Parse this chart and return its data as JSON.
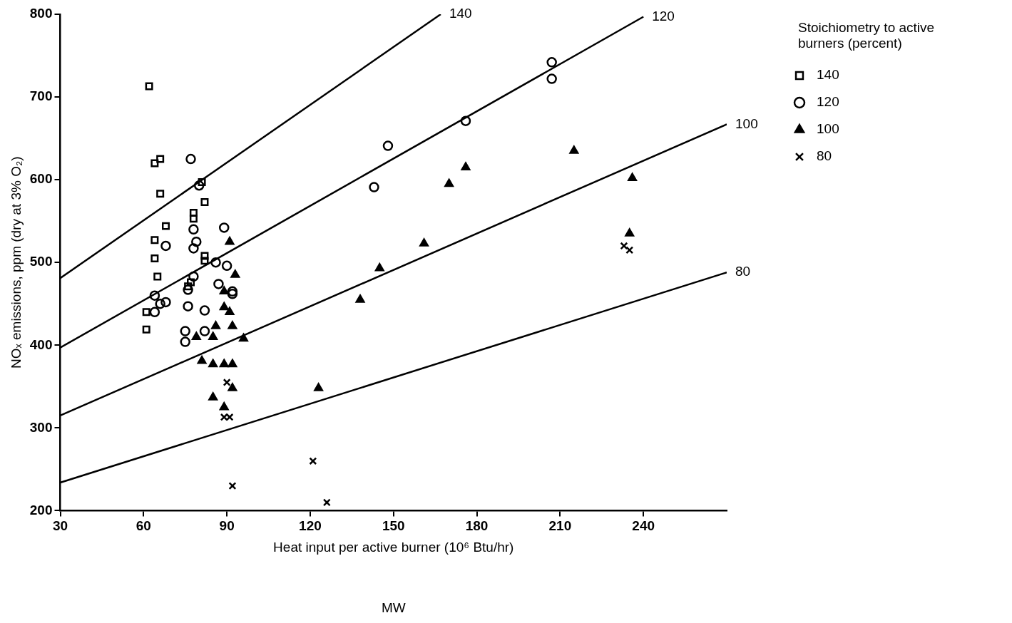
{
  "chart_data": {
    "type": "scatter",
    "xlabel": "Heat input per active burner (10⁶ Btu/hr)",
    "ylabel": "NOₓ emissions, ppm (dry at 3% O₂)",
    "legend_title": "Stoichiometry to active burners (percent)",
    "legend": "top right",
    "grid": false,
    "xlim": [
      30,
      270
    ],
    "xticks": [
      30,
      60,
      90,
      120,
      150,
      180,
      210,
      240
    ],
    "ylim": [
      200,
      800
    ],
    "yticks": [
      200,
      300,
      400,
      500,
      600,
      700,
      800
    ],
    "series": [
      {
        "name": "140",
        "color": "#000000",
        "marker": "square",
        "x": [
          62,
          64,
          66,
          66,
          68,
          64,
          64,
          65,
          61,
          61,
          78,
          78,
          81,
          82,
          82,
          82,
          77,
          76
        ],
        "values": [
          713,
          620,
          625,
          583,
          544,
          527,
          505,
          483,
          440,
          419,
          560,
          553,
          597,
          573,
          508,
          502,
          476,
          471
        ]
      },
      {
        "name": "120",
        "color": "#000000",
        "marker": "circle",
        "x": [
          64,
          64,
          68,
          68,
          66,
          77,
          78,
          78,
          79,
          80,
          78,
          76,
          76,
          75,
          75,
          82,
          82,
          86,
          87,
          89,
          90,
          92,
          92,
          143,
          148,
          176,
          207,
          207
        ],
        "values": [
          460,
          440,
          520,
          452,
          450,
          625,
          540,
          517,
          525,
          593,
          483,
          467,
          447,
          417,
          404,
          442,
          417,
          500,
          474,
          542,
          496,
          465,
          462,
          591,
          641,
          671,
          742,
          722
        ]
      },
      {
        "name": "100",
        "color": "#000000",
        "marker": "triangle",
        "x": [
          91,
          93,
          89,
          89,
          91,
          92,
          86,
          85,
          79,
          96,
          81,
          85,
          89,
          92,
          92,
          85,
          89,
          123,
          138,
          145,
          161,
          170,
          176,
          215,
          236,
          235
        ],
        "values": [
          525,
          485,
          465,
          446,
          440,
          423,
          423,
          410,
          410,
          408,
          381,
          377,
          377,
          377,
          348,
          337,
          325,
          348,
          455,
          493,
          523,
          595,
          615,
          635,
          602,
          535
        ]
      },
      {
        "name": "80",
        "color": "#000000",
        "marker": "cross",
        "x": [
          90,
          89,
          91,
          92,
          121,
          126,
          233,
          235
        ],
        "values": [
          355,
          313,
          313,
          230,
          260,
          210,
          520,
          515
        ]
      },
      {
        "type": "line",
        "color": "#000000",
        "marker": "none",
        "line_style": "solid",
        "x": [
          30,
          167
        ],
        "values": [
          481,
          800
        ]
      },
      {
        "type": "line",
        "color": "#000000",
        "marker": "none",
        "line_style": "solid",
        "x": [
          30,
          240
        ],
        "values": [
          397,
          797
        ]
      },
      {
        "type": "line",
        "color": "#000000",
        "marker": "none",
        "line_style": "solid",
        "x": [
          30,
          270
        ],
        "values": [
          315,
          667
        ]
      },
      {
        "type": "line",
        "color": "#000000",
        "marker": "none",
        "line_style": "solid",
        "x": [
          30,
          270
        ],
        "values": [
          234,
          488
        ]
      }
    ],
    "annotations": [
      {
        "text": "140",
        "x": 167,
        "y": 800
      },
      {
        "text": "120",
        "x": 240,
        "y": 797
      },
      {
        "text": "100",
        "x": 270,
        "y": 667
      },
      {
        "text": "80",
        "x": 270,
        "y": 488
      },
      "MW"
    ]
  }
}
